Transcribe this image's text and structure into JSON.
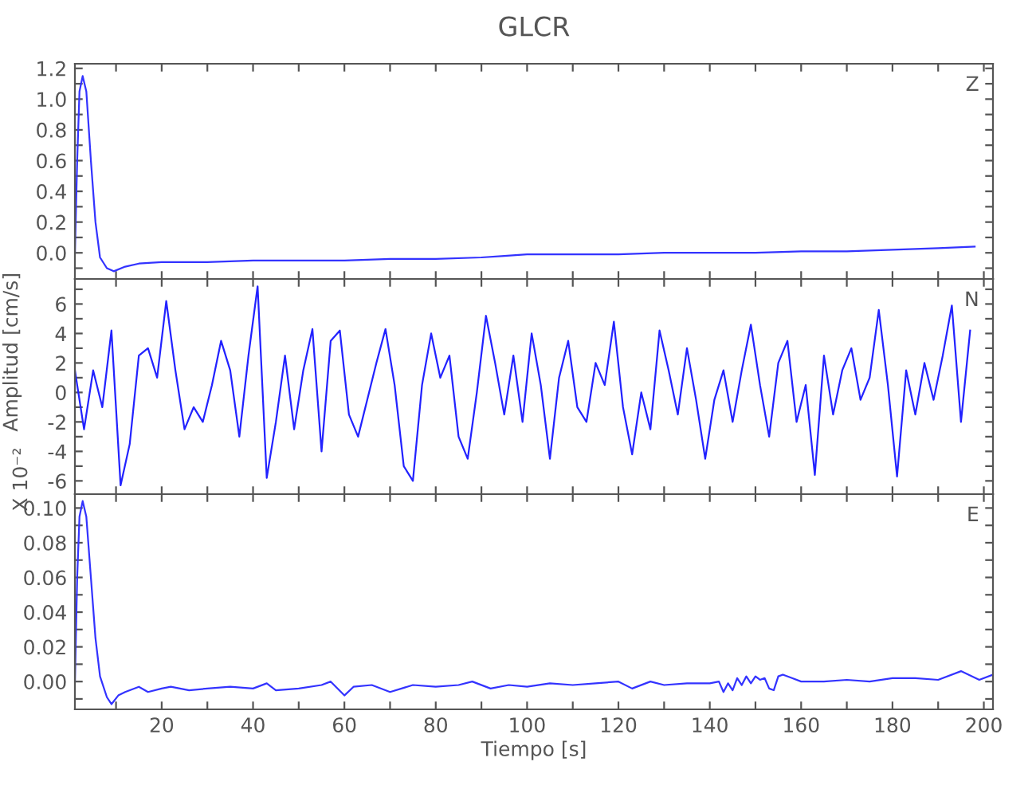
{
  "chart_data": [
    {
      "type": "line",
      "title": "GLCR",
      "annotations": [
        "Z"
      ],
      "tick_labels": "y",
      "xlim": [
        1,
        202
      ],
      "ylim": [
        -0.17,
        1.23
      ],
      "xticks": [
        {
          "value": 10,
          "label": null
        },
        {
          "value": 20,
          "label": null
        },
        {
          "value": 30,
          "label": null
        },
        {
          "value": 40,
          "label": null
        },
        {
          "value": 50,
          "label": null
        },
        {
          "value": 60,
          "label": null
        },
        {
          "value": 70,
          "label": null
        },
        {
          "value": 80,
          "label": null
        },
        {
          "value": 90,
          "label": null
        },
        {
          "value": 100,
          "label": null
        },
        {
          "value": 110,
          "label": null
        },
        {
          "value": 120,
          "label": null
        },
        {
          "value": 130,
          "label": null
        },
        {
          "value": 140,
          "label": null
        },
        {
          "value": 150,
          "label": null
        },
        {
          "value": 160,
          "label": null
        },
        {
          "value": 170,
          "label": null
        },
        {
          "value": 180,
          "label": null
        },
        {
          "value": 190,
          "label": null
        },
        {
          "value": 200,
          "label": null
        }
      ],
      "yticks": [
        {
          "value": -0.1,
          "label": null
        },
        {
          "value": 0,
          "label": "0.0"
        },
        {
          "value": 0.1,
          "label": null
        },
        {
          "value": 0.2,
          "label": "0.2"
        },
        {
          "value": 0.3,
          "label": null
        },
        {
          "value": 0.4,
          "label": "0.4"
        },
        {
          "value": 0.5,
          "label": null
        },
        {
          "value": 0.6,
          "label": "0.6"
        },
        {
          "value": 0.7,
          "label": null
        },
        {
          "value": 0.8,
          "label": "0.8"
        },
        {
          "value": 0.9,
          "label": null
        },
        {
          "value": 1.0,
          "label": "1.0"
        },
        {
          "value": 1.1,
          "label": null
        },
        {
          "value": 1.2,
          "label": "1.2"
        }
      ],
      "series": [
        {
          "color": "#3333ff",
          "x": [
            1,
            1.5,
            2,
            2.7,
            3.5,
            4.5,
            5.5,
            6.5,
            8,
            9.5,
            12,
            15,
            20,
            30,
            40,
            50,
            60,
            70,
            80,
            90,
            95,
            100,
            110,
            120,
            130,
            140,
            150,
            160,
            170,
            180,
            190,
            198
          ],
          "values": [
            0,
            0.6,
            1.05,
            1.15,
            1.05,
            0.6,
            0.2,
            -0.03,
            -0.1,
            -0.12,
            -0.09,
            -0.07,
            -0.06,
            -0.06,
            -0.05,
            -0.05,
            -0.05,
            -0.04,
            -0.04,
            -0.03,
            -0.02,
            -0.01,
            -0.01,
            -0.01,
            0.0,
            0.0,
            0.0,
            0.01,
            0.01,
            0.02,
            0.03,
            0.04
          ]
        }
      ]
    },
    {
      "type": "line",
      "ylabel": "Amplitud [cm/s]",
      "annotations": [
        "N",
        "X 10⁻²"
      ],
      "tick_labels": "y",
      "xlim": [
        1,
        202
      ],
      "ylim": [
        -6.9,
        7.7
      ],
      "xticks": [
        {
          "value": 10,
          "label": null
        },
        {
          "value": 20,
          "label": null
        },
        {
          "value": 30,
          "label": null
        },
        {
          "value": 40,
          "label": null
        },
        {
          "value": 50,
          "label": null
        },
        {
          "value": 60,
          "label": null
        },
        {
          "value": 70,
          "label": null
        },
        {
          "value": 80,
          "label": null
        },
        {
          "value": 90,
          "label": null
        },
        {
          "value": 100,
          "label": null
        },
        {
          "value": 110,
          "label": null
        },
        {
          "value": 120,
          "label": null
        },
        {
          "value": 130,
          "label": null
        },
        {
          "value": 140,
          "label": null
        },
        {
          "value": 150,
          "label": null
        },
        {
          "value": 160,
          "label": null
        },
        {
          "value": 170,
          "label": null
        },
        {
          "value": 180,
          "label": null
        },
        {
          "value": 190,
          "label": null
        },
        {
          "value": 200,
          "label": null
        }
      ],
      "yticks": [
        {
          "value": -6,
          "label": "-6"
        },
        {
          "value": -5,
          "label": null
        },
        {
          "value": -4,
          "label": "-4"
        },
        {
          "value": -3,
          "label": null
        },
        {
          "value": -2,
          "label": "-2"
        },
        {
          "value": -1,
          "label": null
        },
        {
          "value": 0,
          "label": "0"
        },
        {
          "value": 1,
          "label": null
        },
        {
          "value": 2,
          "label": "2"
        },
        {
          "value": 3,
          "label": null
        },
        {
          "value": 4,
          "label": "4"
        },
        {
          "value": 5,
          "label": null
        },
        {
          "value": 6,
          "label": "6"
        },
        {
          "value": 7,
          "label": null
        }
      ],
      "series": [
        {
          "color": "#2222ff",
          "x": [
            1,
            3,
            5,
            7,
            9,
            11,
            13,
            15,
            17,
            19,
            21,
            23,
            25,
            27,
            29,
            31,
            33,
            35,
            37,
            39,
            41,
            43,
            45,
            47,
            49,
            51,
            53,
            55,
            57,
            59,
            61,
            63,
            65,
            67,
            69,
            71,
            73,
            75,
            77,
            79,
            81,
            83,
            85,
            87,
            89,
            91,
            93,
            95,
            97,
            99,
            101,
            103,
            105,
            107,
            109,
            111,
            113,
            115,
            117,
            119,
            121,
            123,
            125,
            127,
            129,
            131,
            133,
            135,
            137,
            139,
            141,
            143,
            145,
            147,
            149,
            151,
            153,
            155,
            157,
            159,
            161,
            163,
            165,
            167,
            169,
            171,
            173,
            175,
            177,
            179,
            181,
            183,
            185,
            187,
            189,
            191,
            193,
            195,
            197
          ],
          "values": [
            1.5,
            -2.5,
            1.5,
            -1,
            4.2,
            -6.3,
            -3.5,
            2.5,
            3,
            1,
            6.2,
            1.5,
            -2.5,
            -1,
            -2,
            0.5,
            3.5,
            1.5,
            -3,
            2.5,
            7.2,
            -5.8,
            -2,
            2.5,
            -2.5,
            1.5,
            4.3,
            -4,
            3.5,
            4.2,
            -1.5,
            -3,
            -0.5,
            2,
            4.3,
            0.5,
            -5,
            -6,
            0.5,
            4,
            1,
            2.5,
            -3,
            -4.5,
            0,
            5.2,
            2,
            -1.5,
            2.5,
            -2,
            4,
            0.5,
            -4.5,
            1,
            3.5,
            -1,
            -2,
            2,
            0.5,
            4.8,
            -1,
            -4.2,
            0,
            -2.5,
            4.2,
            1.5,
            -1.5,
            3,
            -0.5,
            -4.5,
            -0.5,
            1.5,
            -2,
            1.5,
            4.6,
            0.5,
            -3,
            2,
            3.5,
            -2,
            0.5,
            -5.6,
            2.5,
            -1.5,
            1.5,
            3,
            -0.5,
            1,
            5.6,
            0.5,
            -5.7,
            1.5,
            -1.5,
            2,
            -0.5,
            2.5,
            5.9,
            -2,
            4.2
          ]
        }
      ]
    },
    {
      "type": "line",
      "xlabel": "Tiempo [s]",
      "annotations": [
        "E"
      ],
      "xlim": [
        1,
        202
      ],
      "ylim": [
        -0.016,
        0.108
      ],
      "xticks": [
        {
          "value": 10,
          "label": null
        },
        20,
        {
          "value": 30,
          "label": null
        },
        40,
        {
          "value": 50,
          "label": null
        },
        60,
        {
          "value": 70,
          "label": null
        },
        80,
        {
          "value": 90,
          "label": null
        },
        100,
        {
          "value": 110,
          "label": null
        },
        120,
        {
          "value": 130,
          "label": null
        },
        140,
        {
          "value": 150,
          "label": null
        },
        160,
        {
          "value": 170,
          "label": null
        },
        180,
        {
          "value": 190,
          "label": null
        },
        200
      ],
      "yticks": [
        {
          "value": -0.01,
          "label": null
        },
        {
          "value": 0,
          "label": "0.00"
        },
        {
          "value": 0.01,
          "label": null
        },
        {
          "value": 0.02,
          "label": "0.02"
        },
        {
          "value": 0.03,
          "label": null
        },
        {
          "value": 0.04,
          "label": "0.04"
        },
        {
          "value": 0.05,
          "label": null
        },
        {
          "value": 0.06,
          "label": "0.06"
        },
        {
          "value": 0.07,
          "label": null
        },
        {
          "value": 0.08,
          "label": "0.08"
        },
        {
          "value": 0.09,
          "label": null
        },
        {
          "value": 0.1,
          "label": "0.10"
        }
      ],
      "series": [
        {
          "color": "#3333ff",
          "x": [
            1,
            1.5,
            2,
            2.7,
            3.5,
            4.5,
            5.5,
            6.5,
            8,
            9,
            10.5,
            12,
            15,
            17,
            20,
            22,
            26,
            30,
            35,
            40,
            43,
            45,
            50,
            55,
            57,
            60,
            62,
            66,
            70,
            75,
            80,
            85,
            88,
            92,
            96,
            100,
            105,
            110,
            115,
            120,
            123,
            127,
            130,
            135,
            140,
            142,
            143,
            144,
            145,
            146,
            147,
            148,
            149,
            150,
            151,
            152,
            153,
            154,
            155,
            156,
            158,
            160,
            165,
            170,
            175,
            180,
            185,
            190,
            195,
            199,
            202
          ],
          "values": [
            0,
            0.06,
            0.095,
            0.104,
            0.095,
            0.06,
            0.025,
            0.003,
            -0.009,
            -0.013,
            -0.008,
            -0.006,
            -0.003,
            -0.006,
            -0.004,
            -0.003,
            -0.005,
            -0.004,
            -0.003,
            -0.004,
            -0.001,
            -0.005,
            -0.004,
            -0.002,
            0.0,
            -0.008,
            -0.003,
            -0.002,
            -0.006,
            -0.002,
            -0.003,
            -0.002,
            0.0,
            -0.004,
            -0.002,
            -0.003,
            -0.001,
            -0.002,
            -0.001,
            0.0,
            -0.004,
            0.0,
            -0.002,
            -0.001,
            -0.001,
            0.0,
            -0.006,
            -0.001,
            -0.005,
            0.002,
            -0.002,
            0.003,
            -0.001,
            0.003,
            0.001,
            0.002,
            -0.004,
            -0.005,
            0.003,
            0.004,
            0.002,
            0.0,
            0.0,
            0.001,
            0.0,
            0.002,
            0.002,
            0.001,
            0.006,
            0.001,
            0.004
          ]
        }
      ]
    }
  ]
}
